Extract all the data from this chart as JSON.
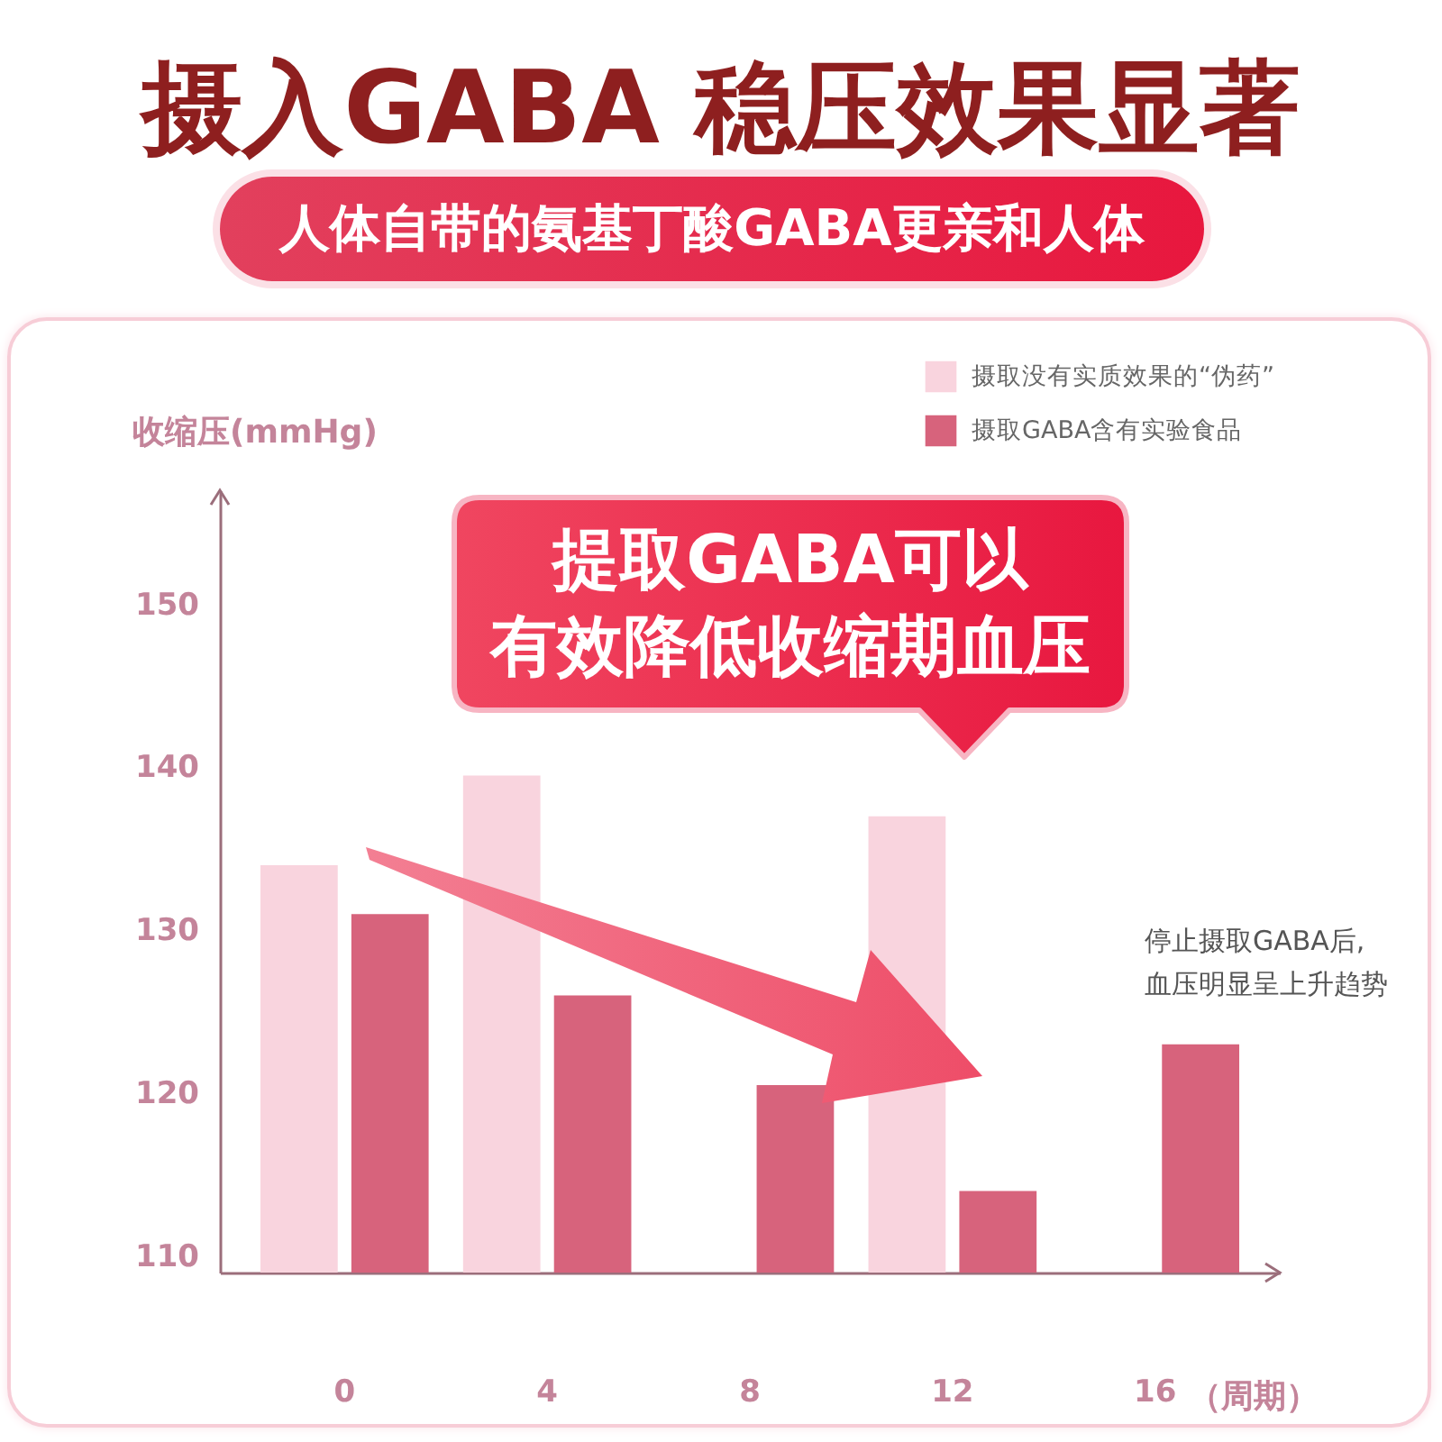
{
  "chart_data": {
    "type": "bar",
    "title": "摄入GABA 稳压效果显著",
    "subtitle": "人体自带的氨基丁酸GABA更亲和人体",
    "xlabel": "（周期）",
    "ylabel": "收缩压(mmHg)",
    "categories": [
      "0",
      "4",
      "8",
      "12",
      "16"
    ],
    "series": [
      {
        "name": "摄取没有实质效果的“伪药”",
        "color": "#f9d4de",
        "values": [
          134,
          139.5,
          null,
          137,
          null
        ]
      },
      {
        "name": "摄取GABA含有实验食品",
        "color": "#d7637c",
        "values": [
          131,
          126,
          120.5,
          114,
          123
        ]
      }
    ],
    "ylim": [
      109,
      157
    ],
    "yticks": [
      110,
      120,
      130,
      140,
      150
    ],
    "legend": "top right",
    "annotations": [
      "提取GABA可以",
      "有效降低收缩期血压",
      "停止摄取GABA后,\n血压明显呈上升趋势"
    ]
  }
}
